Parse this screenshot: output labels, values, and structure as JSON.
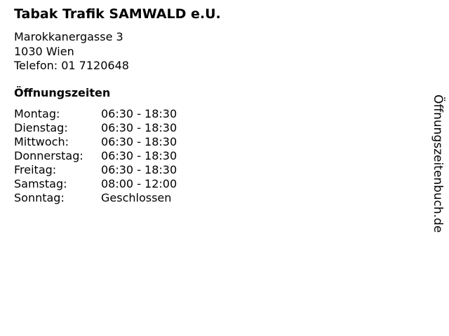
{
  "title": "Tabak Trafik SAMWALD e.U.",
  "address": {
    "street": "Marokkanergasse 3",
    "city": "1030 Wien",
    "phone": "Telefon: 01 7120648"
  },
  "hours_heading": "Öffnungszeiten",
  "hours": [
    {
      "day": "Montag:",
      "time": "06:30 - 18:30"
    },
    {
      "day": "Dienstag:",
      "time": "06:30 - 18:30"
    },
    {
      "day": "Mittwoch:",
      "time": "06:30 - 18:30"
    },
    {
      "day": "Donnerstag:",
      "time": "06:30 - 18:30"
    },
    {
      "day": "Freitag:",
      "time": "06:30 - 18:30"
    },
    {
      "day": "Samstag:",
      "time": "08:00 - 12:00"
    },
    {
      "day": "Sonntag:",
      "time": "Geschlossen"
    }
  ],
  "watermark": "Öffnungszeitenbuch.de"
}
